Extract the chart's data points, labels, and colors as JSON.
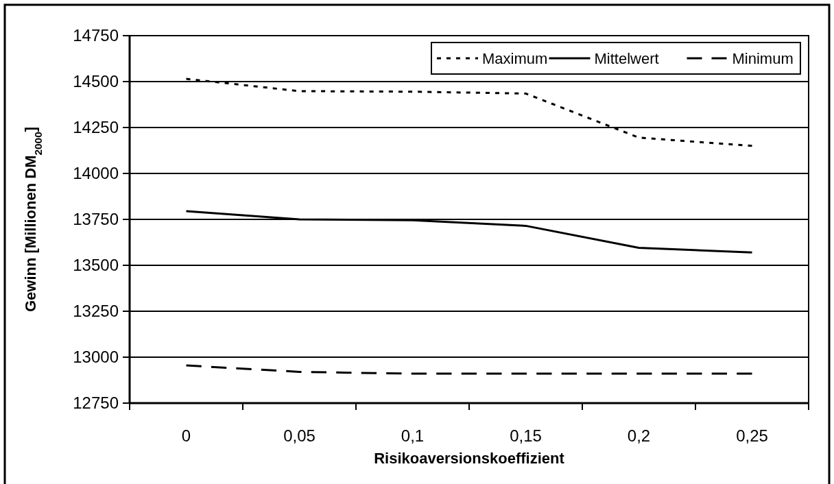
{
  "chart_data": {
    "type": "line",
    "xlabel": "Risikoaversionskoeffizient",
    "ylabel": "Gewinn [Millionen DM$_{2000}$]",
    "categories": [
      "0",
      "0,05",
      "0,1",
      "0,15",
      "0,2",
      "0,25"
    ],
    "series": [
      {
        "name": "Maximum",
        "color": "#000000",
        "line_style": "dotted",
        "values": [
          14515,
          14448,
          14445,
          14435,
          14195,
          14150
        ]
      },
      {
        "name": "Mittelwert",
        "color": "#000000",
        "line_style": "solid",
        "values": [
          13795,
          13750,
          13745,
          13715,
          13595,
          13570
        ]
      },
      {
        "name": "Minimum",
        "color": "#000000",
        "line_style": "dashed",
        "values": [
          12955,
          12920,
          12910,
          12910,
          12910,
          12910
        ]
      }
    ],
    "ylim": [
      12750,
      14750
    ],
    "yticks": [
      12750,
      13000,
      13250,
      13500,
      13750,
      14000,
      14250,
      14500,
      14750
    ],
    "grid": "y",
    "legend": "top right",
    "marker": "none"
  }
}
